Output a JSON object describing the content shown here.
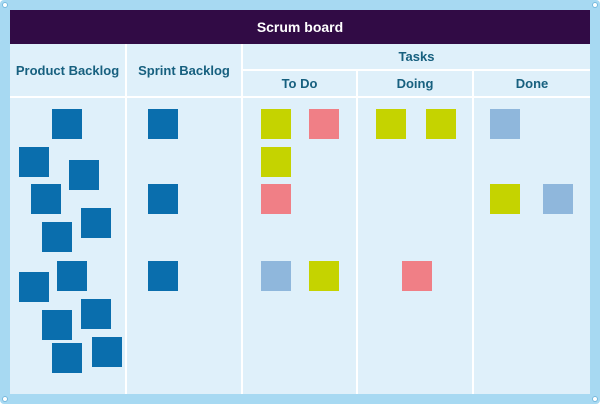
{
  "title": "Scrum board",
  "columns": {
    "product_backlog": "Product Backlog",
    "sprint_backlog": "Sprint Backlog",
    "tasks": "Tasks",
    "todo": "To Do",
    "doing": "Doing",
    "done": "Done"
  },
  "colors": {
    "frame": "#a7d9f2",
    "board": "#dff0fa",
    "title_bar": "#310b45",
    "header_text": "#17607f",
    "story_note": "#0a6ead",
    "task_green": "#c5d300",
    "task_red": "#f07f86",
    "task_blue": "#8fb7dc"
  },
  "cards": {
    "product_backlog": [
      "story",
      "story",
      "story",
      "story",
      "story",
      "story",
      "story",
      "story",
      "story",
      "story",
      "story",
      "story",
      "story"
    ],
    "sprint_backlog": [
      "story",
      "story",
      "story"
    ],
    "todo": [
      "green",
      "red",
      "green",
      "red",
      "blue",
      "green"
    ],
    "doing": [
      "green",
      "green",
      "red"
    ],
    "done": [
      "blue",
      "green",
      "blue"
    ]
  }
}
